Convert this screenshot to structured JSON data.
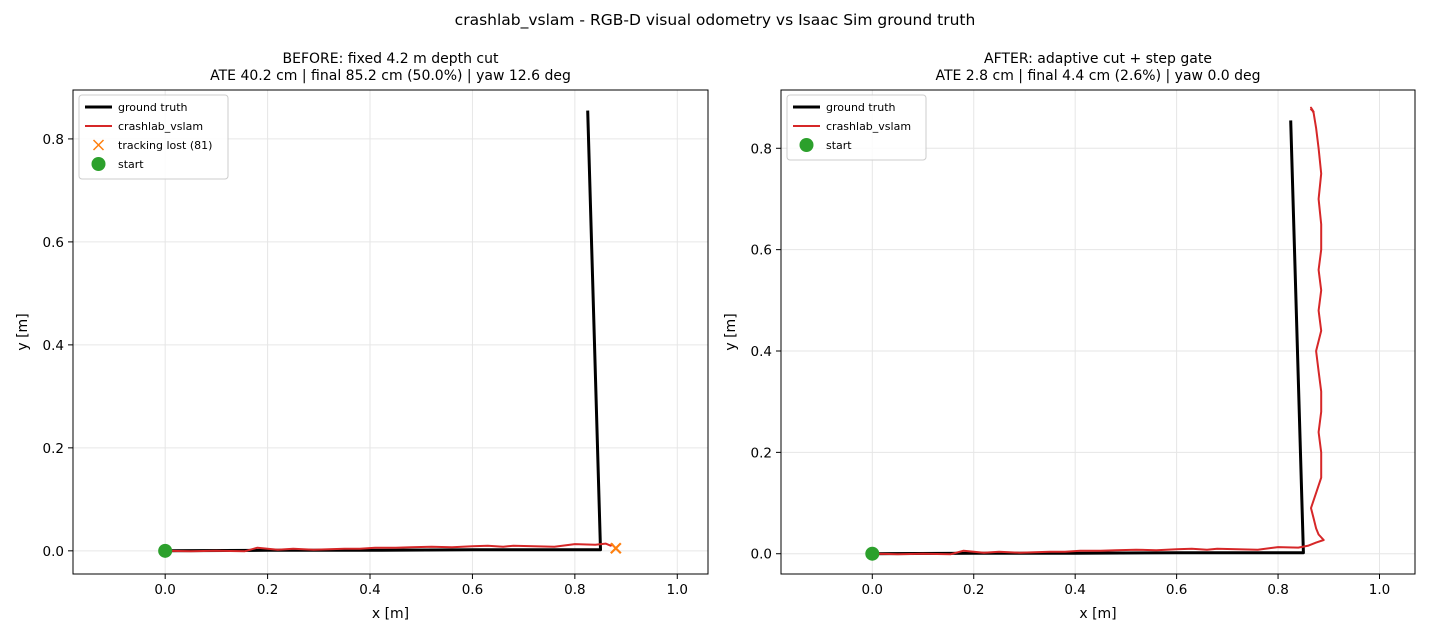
{
  "figure": {
    "suptitle": "crashlab_vslam - RGB-D visual odometry vs Isaac Sim ground truth"
  },
  "colors": {
    "ground_truth": "#000000",
    "vslam": "#d62728",
    "tracking_lost": "#ff7f0e",
    "start": "#2ca02c",
    "grid": "#e6e6e6"
  },
  "chart_data": [
    {
      "type": "line",
      "title": "BEFORE: fixed 4.2 m depth cut",
      "subtitle": "ATE 40.2 cm | final 85.2 cm (50.0%) | yaw 12.6 deg",
      "xlabel": "x [m]",
      "ylabel": "y [m]",
      "xlim": [
        -0.18,
        1.06
      ],
      "ylim": [
        -0.045,
        0.895
      ],
      "xticks": [
        "0.0",
        "0.2",
        "0.4",
        "0.6",
        "0.8",
        "1.0"
      ],
      "yticks": [
        "0.0",
        "0.2",
        "0.4",
        "0.6",
        "0.8"
      ],
      "grid": true,
      "legend_position": "top-left",
      "legend": [
        "ground truth",
        "crashlab_vslam",
        "tracking lost (81)",
        "start"
      ],
      "series": [
        {
          "name": "ground truth",
          "points": [
            [
              0.0,
              0.0
            ],
            [
              0.2,
              0.001
            ],
            [
              0.4,
              0.001
            ],
            [
              0.6,
              0.002
            ],
            [
              0.85,
              0.002
            ],
            [
              0.825,
              0.855
            ]
          ]
        },
        {
          "name": "crashlab_vslam",
          "points": [
            [
              0.0,
              0.0
            ],
            [
              0.05,
              -0.001
            ],
            [
              0.1,
              0.0
            ],
            [
              0.155,
              -0.001
            ],
            [
              0.18,
              0.006
            ],
            [
              0.2,
              0.004
            ],
            [
              0.22,
              0.002
            ],
            [
              0.25,
              0.004
            ],
            [
              0.27,
              0.003
            ],
            [
              0.29,
              0.002
            ],
            [
              0.32,
              0.003
            ],
            [
              0.35,
              0.004
            ],
            [
              0.38,
              0.004
            ],
            [
              0.41,
              0.006
            ],
            [
              0.45,
              0.006
            ],
            [
              0.48,
              0.007
            ],
            [
              0.52,
              0.008
            ],
            [
              0.56,
              0.007
            ],
            [
              0.6,
              0.009
            ],
            [
              0.63,
              0.01
            ],
            [
              0.66,
              0.008
            ],
            [
              0.68,
              0.01
            ],
            [
              0.72,
              0.009
            ],
            [
              0.76,
              0.008
            ],
            [
              0.8,
              0.013
            ],
            [
              0.84,
              0.012
            ],
            [
              0.86,
              0.014
            ],
            [
              0.87,
              0.01
            ],
            [
              0.875,
              0.013
            ]
          ]
        },
        {
          "name": "tracking lost (81)",
          "points": [
            [
              0.88,
              0.005
            ]
          ]
        },
        {
          "name": "start",
          "points": [
            [
              0.0,
              0.0
            ]
          ]
        }
      ]
    },
    {
      "type": "line",
      "title": "AFTER: adaptive cut + step gate",
      "subtitle": "ATE 2.8 cm | final 4.4 cm (2.6%) | yaw 0.0 deg",
      "xlabel": "x [m]",
      "ylabel": "y [m]",
      "xlim": [
        -0.18,
        1.07
      ],
      "ylim": [
        -0.04,
        0.915
      ],
      "xticks": [
        "0.0",
        "0.2",
        "0.4",
        "0.6",
        "0.8",
        "1.0"
      ],
      "yticks": [
        "0.0",
        "0.2",
        "0.4",
        "0.6",
        "0.8"
      ],
      "grid": true,
      "legend_position": "top-left",
      "legend": [
        "ground truth",
        "crashlab_vslam",
        "start"
      ],
      "series": [
        {
          "name": "ground truth",
          "points": [
            [
              0.0,
              0.0
            ],
            [
              0.2,
              0.001
            ],
            [
              0.4,
              0.001
            ],
            [
              0.6,
              0.002
            ],
            [
              0.85,
              0.002
            ],
            [
              0.825,
              0.855
            ]
          ]
        },
        {
          "name": "crashlab_vslam",
          "points": [
            [
              0.0,
              0.0
            ],
            [
              0.05,
              -0.001
            ],
            [
              0.1,
              0.0
            ],
            [
              0.155,
              -0.001
            ],
            [
              0.18,
              0.006
            ],
            [
              0.2,
              0.004
            ],
            [
              0.22,
              0.002
            ],
            [
              0.25,
              0.004
            ],
            [
              0.27,
              0.003
            ],
            [
              0.29,
              0.002
            ],
            [
              0.32,
              0.003
            ],
            [
              0.35,
              0.004
            ],
            [
              0.38,
              0.004
            ],
            [
              0.41,
              0.006
            ],
            [
              0.45,
              0.006
            ],
            [
              0.48,
              0.007
            ],
            [
              0.52,
              0.008
            ],
            [
              0.56,
              0.007
            ],
            [
              0.6,
              0.009
            ],
            [
              0.63,
              0.01
            ],
            [
              0.66,
              0.008
            ],
            [
              0.68,
              0.01
            ],
            [
              0.72,
              0.009
            ],
            [
              0.76,
              0.008
            ],
            [
              0.8,
              0.013
            ],
            [
              0.84,
              0.012
            ],
            [
              0.86,
              0.016
            ],
            [
              0.875,
              0.022
            ],
            [
              0.89,
              0.027
            ],
            [
              0.88,
              0.038
            ],
            [
              0.875,
              0.05
            ],
            [
              0.87,
              0.07
            ],
            [
              0.865,
              0.09
            ],
            [
              0.875,
              0.12
            ],
            [
              0.885,
              0.15
            ],
            [
              0.885,
              0.2
            ],
            [
              0.88,
              0.24
            ],
            [
              0.885,
              0.28
            ],
            [
              0.885,
              0.32
            ],
            [
              0.88,
              0.36
            ],
            [
              0.875,
              0.4
            ],
            [
              0.885,
              0.44
            ],
            [
              0.88,
              0.48
            ],
            [
              0.885,
              0.52
            ],
            [
              0.88,
              0.56
            ],
            [
              0.885,
              0.6
            ],
            [
              0.885,
              0.65
            ],
            [
              0.88,
              0.7
            ],
            [
              0.885,
              0.75
            ],
            [
              0.88,
              0.8
            ],
            [
              0.875,
              0.84
            ],
            [
              0.87,
              0.87
            ],
            [
              0.865,
              0.88
            ],
            [
              0.87,
              0.872
            ],
            [
              0.864,
              0.878
            ]
          ]
        },
        {
          "name": "start",
          "points": [
            [
              0.0,
              0.0
            ]
          ]
        }
      ]
    }
  ]
}
